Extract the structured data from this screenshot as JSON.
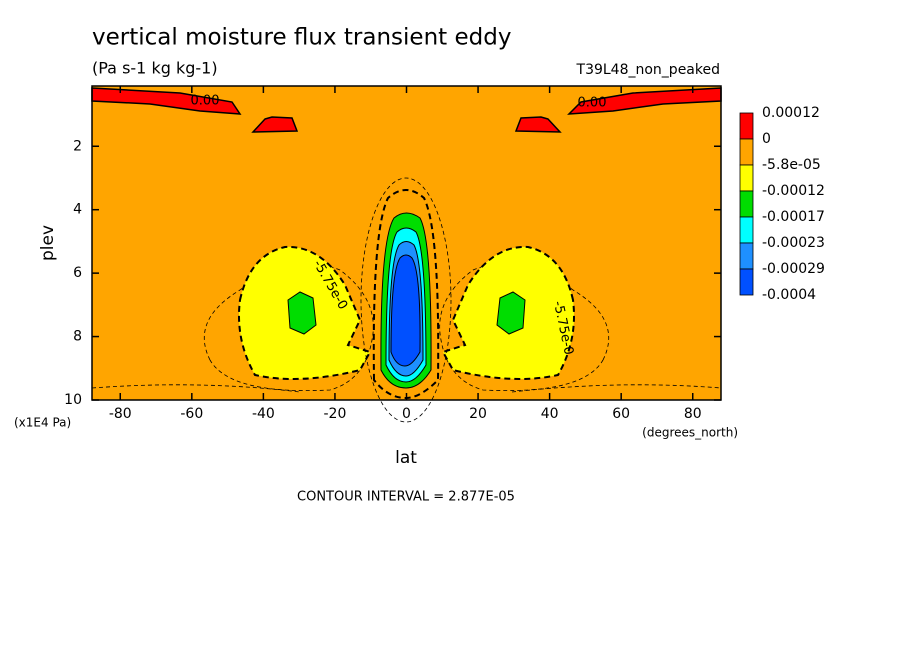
{
  "chart_data": {
    "type": "contour",
    "title": "vertical moisture flux transient eddy",
    "subtitle": "(Pa s-1 kg kg-1)",
    "dataset": "T39L48_non_peaked",
    "xlabel": "lat",
    "ylabel": "plev",
    "xunits": "(degrees_north)",
    "yunits": "(x1E4 Pa)",
    "xlim": [
      -87.9,
      87.9
    ],
    "ylim": [
      10,
      0.1
    ],
    "xticks": [
      -80,
      -60,
      -40,
      -20,
      0,
      20,
      40,
      60,
      80
    ],
    "yticks": [
      2,
      4,
      6,
      8,
      10
    ],
    "levels": [
      0.00012,
      0,
      {
        "value": -5.8e-05,
        "label": "-5.8e-05"
      },
      -0.00012,
      -0.00017,
      -0.00023,
      -0.00029,
      -0.0004
    ],
    "colors": [
      "#ff0000",
      "#ffa500",
      "#ffff00",
      "#00dd00",
      "#00ffff",
      "#1e90ff",
      "#0050ff"
    ],
    "contour_labels": [
      "0.00",
      "0.00",
      "-5.75e-0",
      "-5.75e-0"
    ],
    "footnote": "CONTOUR INTERVAL = 2.877E-05"
  }
}
